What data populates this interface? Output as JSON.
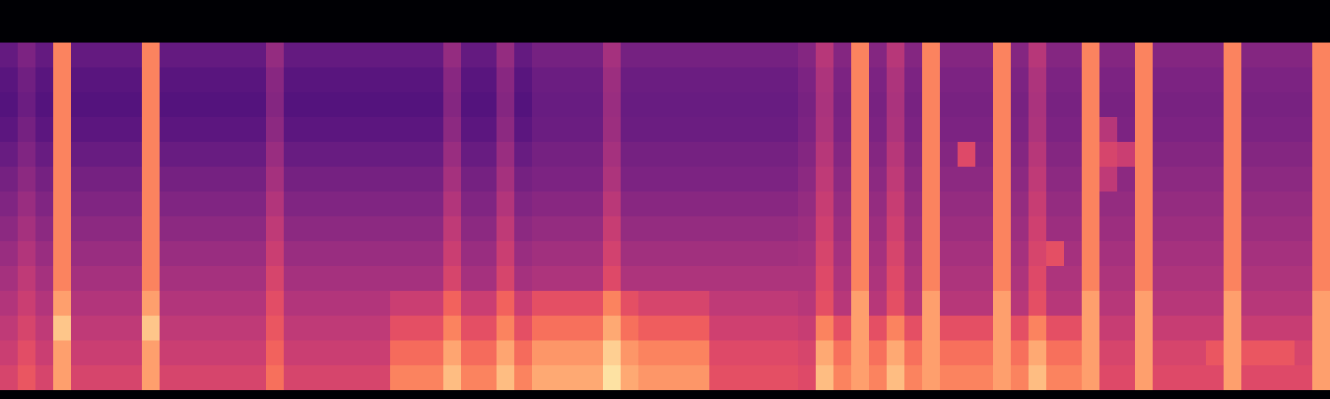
{
  "chart_data": {
    "type": "heatmap",
    "color": "magma",
    "zlim": [
      0,
      100
    ],
    "tick_labels": false,
    "z": [
      [
        30,
        36,
        30,
        74,
        30,
        30,
        30,
        30,
        74,
        30,
        30,
        30,
        30,
        30,
        30,
        42,
        30,
        30,
        30,
        30,
        30,
        30,
        30,
        30,
        30,
        42,
        30,
        30,
        42,
        30,
        34,
        34,
        34,
        34,
        46,
        34,
        34,
        34,
        34,
        34,
        34,
        34,
        34,
        34,
        34,
        38,
        50,
        38,
        74,
        38,
        50,
        38,
        74,
        38,
        38,
        38,
        74,
        38,
        50,
        38,
        38,
        74,
        38,
        38,
        74,
        38,
        38,
        38,
        38,
        74,
        38,
        38,
        38,
        38,
        74
      ],
      [
        27,
        33,
        27,
        74,
        27,
        27,
        27,
        27,
        74,
        27,
        27,
        27,
        27,
        27,
        27,
        39,
        27,
        27,
        27,
        27,
        27,
        27,
        27,
        27,
        27,
        39,
        27,
        27,
        39,
        27,
        32,
        32,
        32,
        32,
        44,
        32,
        32,
        32,
        32,
        32,
        32,
        32,
        32,
        32,
        32,
        36,
        48,
        36,
        74,
        36,
        48,
        36,
        74,
        36,
        36,
        36,
        74,
        36,
        48,
        36,
        36,
        74,
        36,
        36,
        74,
        36,
        36,
        36,
        36,
        74,
        36,
        36,
        36,
        36,
        74
      ],
      [
        26,
        32,
        26,
        74,
        26,
        26,
        26,
        26,
        74,
        26,
        26,
        26,
        26,
        26,
        26,
        38,
        26,
        26,
        26,
        26,
        26,
        26,
        26,
        26,
        26,
        38,
        26,
        26,
        38,
        26,
        31,
        31,
        31,
        31,
        43,
        31,
        31,
        31,
        31,
        31,
        31,
        31,
        31,
        31,
        31,
        35,
        47,
        35,
        74,
        35,
        47,
        35,
        74,
        35,
        35,
        35,
        74,
        35,
        47,
        35,
        35,
        74,
        35,
        35,
        74,
        35,
        35,
        35,
        35,
        74,
        35,
        35,
        35,
        35,
        74
      ],
      [
        28,
        34,
        28,
        74,
        28,
        28,
        28,
        28,
        74,
        28,
        28,
        28,
        28,
        28,
        28,
        40,
        28,
        28,
        28,
        28,
        28,
        28,
        28,
        28,
        28,
        40,
        28,
        28,
        40,
        28,
        32,
        32,
        32,
        32,
        44,
        32,
        32,
        32,
        32,
        32,
        32,
        32,
        32,
        32,
        32,
        36,
        48,
        36,
        74,
        36,
        48,
        36,
        74,
        36,
        36,
        36,
        74,
        36,
        48,
        36,
        36,
        74,
        50,
        36,
        74,
        36,
        36,
        36,
        36,
        74,
        36,
        36,
        36,
        36,
        74
      ],
      [
        31,
        37,
        31,
        74,
        31,
        31,
        31,
        31,
        74,
        31,
        31,
        31,
        31,
        31,
        31,
        43,
        31,
        31,
        31,
        31,
        31,
        31,
        31,
        31,
        31,
        43,
        31,
        31,
        43,
        31,
        34,
        34,
        34,
        34,
        46,
        34,
        34,
        34,
        34,
        34,
        34,
        34,
        34,
        34,
        34,
        38,
        50,
        38,
        74,
        38,
        50,
        38,
        74,
        38,
        60,
        38,
        74,
        38,
        50,
        38,
        38,
        74,
        58,
        55,
        74,
        38,
        38,
        38,
        38,
        74,
        38,
        38,
        38,
        38,
        74
      ],
      [
        34,
        40,
        34,
        74,
        34,
        34,
        34,
        34,
        74,
        34,
        34,
        34,
        34,
        34,
        34,
        46,
        34,
        34,
        34,
        34,
        34,
        34,
        34,
        34,
        34,
        46,
        34,
        34,
        46,
        34,
        36,
        36,
        36,
        36,
        48,
        36,
        36,
        36,
        36,
        36,
        36,
        36,
        36,
        36,
        36,
        40,
        52,
        40,
        74,
        40,
        52,
        40,
        74,
        40,
        40,
        40,
        74,
        40,
        52,
        40,
        40,
        74,
        52,
        40,
        74,
        40,
        40,
        40,
        40,
        74,
        40,
        40,
        40,
        40,
        74
      ],
      [
        37,
        43,
        37,
        74,
        37,
        37,
        37,
        37,
        74,
        37,
        37,
        37,
        37,
        37,
        37,
        49,
        37,
        37,
        37,
        37,
        37,
        37,
        37,
        37,
        37,
        49,
        37,
        37,
        49,
        37,
        39,
        39,
        39,
        39,
        51,
        39,
        39,
        39,
        39,
        39,
        39,
        39,
        39,
        39,
        39,
        42,
        54,
        42,
        74,
        42,
        54,
        42,
        74,
        42,
        42,
        42,
        74,
        42,
        54,
        42,
        42,
        74,
        42,
        42,
        74,
        42,
        42,
        42,
        42,
        74,
        42,
        42,
        42,
        42,
        74
      ],
      [
        40,
        46,
        40,
        74,
        40,
        40,
        40,
        40,
        74,
        40,
        40,
        40,
        40,
        40,
        40,
        52,
        40,
        40,
        40,
        40,
        40,
        40,
        40,
        40,
        40,
        52,
        40,
        40,
        52,
        40,
        42,
        42,
        42,
        42,
        54,
        42,
        42,
        42,
        42,
        42,
        42,
        42,
        42,
        42,
        42,
        44,
        56,
        44,
        74,
        44,
        56,
        44,
        74,
        44,
        44,
        44,
        74,
        44,
        56,
        44,
        44,
        74,
        44,
        44,
        74,
        44,
        44,
        44,
        44,
        74,
        44,
        44,
        44,
        44,
        74
      ],
      [
        43,
        49,
        43,
        74,
        43,
        43,
        43,
        43,
        74,
        43,
        43,
        43,
        43,
        43,
        43,
        55,
        43,
        43,
        43,
        43,
        43,
        43,
        43,
        43,
        43,
        55,
        43,
        43,
        55,
        43,
        45,
        45,
        45,
        45,
        57,
        45,
        45,
        45,
        45,
        45,
        45,
        45,
        45,
        45,
        45,
        46,
        58,
        46,
        74,
        46,
        58,
        46,
        74,
        46,
        46,
        46,
        74,
        46,
        58,
        62,
        46,
        74,
        46,
        46,
        74,
        46,
        46,
        46,
        46,
        74,
        46,
        46,
        46,
        46,
        74
      ],
      [
        46,
        52,
        46,
        74,
        46,
        46,
        46,
        46,
        74,
        46,
        46,
        46,
        46,
        46,
        46,
        58,
        46,
        46,
        46,
        46,
        46,
        46,
        46,
        46,
        46,
        58,
        46,
        46,
        58,
        46,
        48,
        48,
        48,
        48,
        60,
        48,
        48,
        48,
        48,
        48,
        48,
        48,
        48,
        48,
        48,
        48,
        60,
        48,
        74,
        48,
        60,
        48,
        74,
        48,
        48,
        48,
        74,
        48,
        60,
        48,
        48,
        74,
        48,
        48,
        74,
        48,
        48,
        48,
        48,
        74,
        48,
        48,
        48,
        48,
        74
      ],
      [
        49,
        55,
        49,
        80,
        49,
        49,
        49,
        49,
        80,
        49,
        49,
        49,
        49,
        49,
        49,
        61,
        49,
        49,
        49,
        49,
        49,
        49,
        55,
        55,
        55,
        67,
        55,
        55,
        67,
        55,
        62,
        62,
        62,
        62,
        74,
        62,
        58,
        58,
        58,
        58,
        52,
        52,
        52,
        52,
        52,
        50,
        62,
        50,
        80,
        50,
        62,
        50,
        80,
        50,
        50,
        50,
        80,
        50,
        62,
        50,
        50,
        80,
        50,
        50,
        80,
        50,
        50,
        50,
        50,
        80,
        50,
        50,
        50,
        50,
        80
      ],
      [
        52,
        58,
        52,
        88,
        52,
        52,
        52,
        52,
        88,
        52,
        52,
        52,
        52,
        52,
        52,
        64,
        52,
        52,
        52,
        52,
        52,
        52,
        62,
        62,
        62,
        74,
        62,
        62,
        74,
        62,
        70,
        70,
        70,
        70,
        82,
        70,
        66,
        66,
        66,
        66,
        56,
        56,
        56,
        56,
        56,
        54,
        74,
        62,
        80,
        62,
        74,
        62,
        80,
        62,
        62,
        62,
        80,
        62,
        74,
        62,
        62,
        80,
        54,
        54,
        80,
        54,
        54,
        54,
        54,
        80,
        54,
        54,
        54,
        54,
        80
      ],
      [
        55,
        61,
        55,
        80,
        55,
        55,
        55,
        55,
        80,
        55,
        55,
        55,
        55,
        55,
        55,
        67,
        55,
        55,
        55,
        55,
        55,
        55,
        69,
        69,
        69,
        81,
        69,
        69,
        81,
        69,
        78,
        78,
        78,
        78,
        90,
        78,
        74,
        74,
        74,
        74,
        60,
        60,
        60,
        60,
        60,
        58,
        82,
        70,
        80,
        70,
        82,
        70,
        80,
        70,
        70,
        70,
        80,
        70,
        82,
        70,
        70,
        80,
        58,
        58,
        80,
        58,
        58,
        58,
        64,
        80,
        64,
        64,
        64,
        58,
        80
      ],
      [
        58,
        64,
        58,
        80,
        58,
        58,
        58,
        58,
        80,
        58,
        58,
        58,
        58,
        58,
        58,
        70,
        58,
        58,
        58,
        58,
        58,
        58,
        74,
        74,
        74,
        86,
        74,
        74,
        86,
        74,
        82,
        82,
        82,
        82,
        94,
        82,
        78,
        78,
        78,
        78,
        62,
        62,
        62,
        62,
        62,
        60,
        86,
        74,
        80,
        74,
        86,
        74,
        80,
        74,
        74,
        74,
        80,
        74,
        86,
        74,
        74,
        80,
        60,
        60,
        80,
        60,
        60,
        60,
        60,
        80,
        60,
        60,
        60,
        60,
        80
      ]
    ]
  }
}
